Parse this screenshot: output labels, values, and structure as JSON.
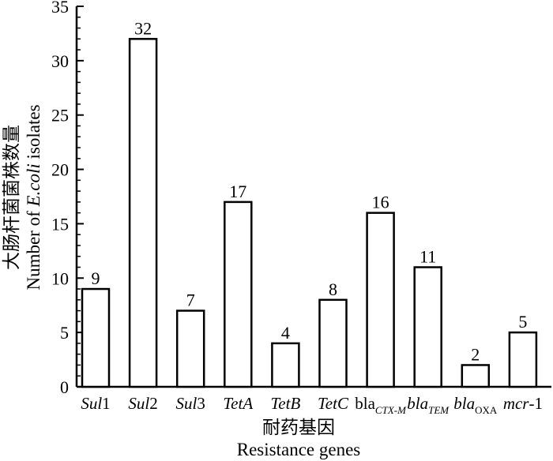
{
  "chart_data": {
    "type": "bar",
    "categories": [
      {
        "parts": [
          {
            "t": "Sul",
            "i": true
          },
          {
            "t": "1"
          }
        ]
      },
      {
        "parts": [
          {
            "t": "Sul",
            "i": true
          },
          {
            "t": "2"
          }
        ]
      },
      {
        "parts": [
          {
            "t": "Sul",
            "i": true
          },
          {
            "t": "3"
          }
        ]
      },
      {
        "parts": [
          {
            "t": "TetA",
            "i": true
          }
        ]
      },
      {
        "parts": [
          {
            "t": "TetB",
            "i": true
          }
        ]
      },
      {
        "parts": [
          {
            "t": "TetC",
            "i": true
          }
        ]
      },
      {
        "parts": [
          {
            "t": "bla"
          },
          {
            "t": "CTX-M",
            "i": true,
            "sub": true
          }
        ]
      },
      {
        "parts": [
          {
            "t": "bla",
            "i": true
          },
          {
            "t": "TEM",
            "i": true,
            "sub": true
          }
        ]
      },
      {
        "parts": [
          {
            "t": "bla",
            "i": true
          },
          {
            "t": "OXA",
            "sub": true
          }
        ]
      },
      {
        "parts": [
          {
            "t": "mcr",
            "i": true
          },
          {
            "t": "-1"
          }
        ]
      }
    ],
    "values": [
      9,
      32,
      7,
      17,
      4,
      8,
      16,
      11,
      2,
      5
    ],
    "data_labels": [
      "9",
      "32",
      "7",
      "17",
      "4",
      "8",
      "16",
      "11",
      "2",
      "5"
    ],
    "ylim": [
      0,
      35
    ],
    "yticks": [
      "0",
      "5",
      "10",
      "15",
      "20",
      "25",
      "30",
      "35"
    ],
    "xlabel_cn": "耐药基因",
    "xlabel_en": "Resistance genes",
    "ylabel_cn": "大肠杆菌菌株数量",
    "ylabel_en": {
      "parts": [
        {
          "t": "Number of "
        },
        {
          "t": "E.coli",
          "i": true
        },
        {
          "t": " isolates"
        }
      ]
    },
    "grid": false,
    "legend": "none"
  }
}
